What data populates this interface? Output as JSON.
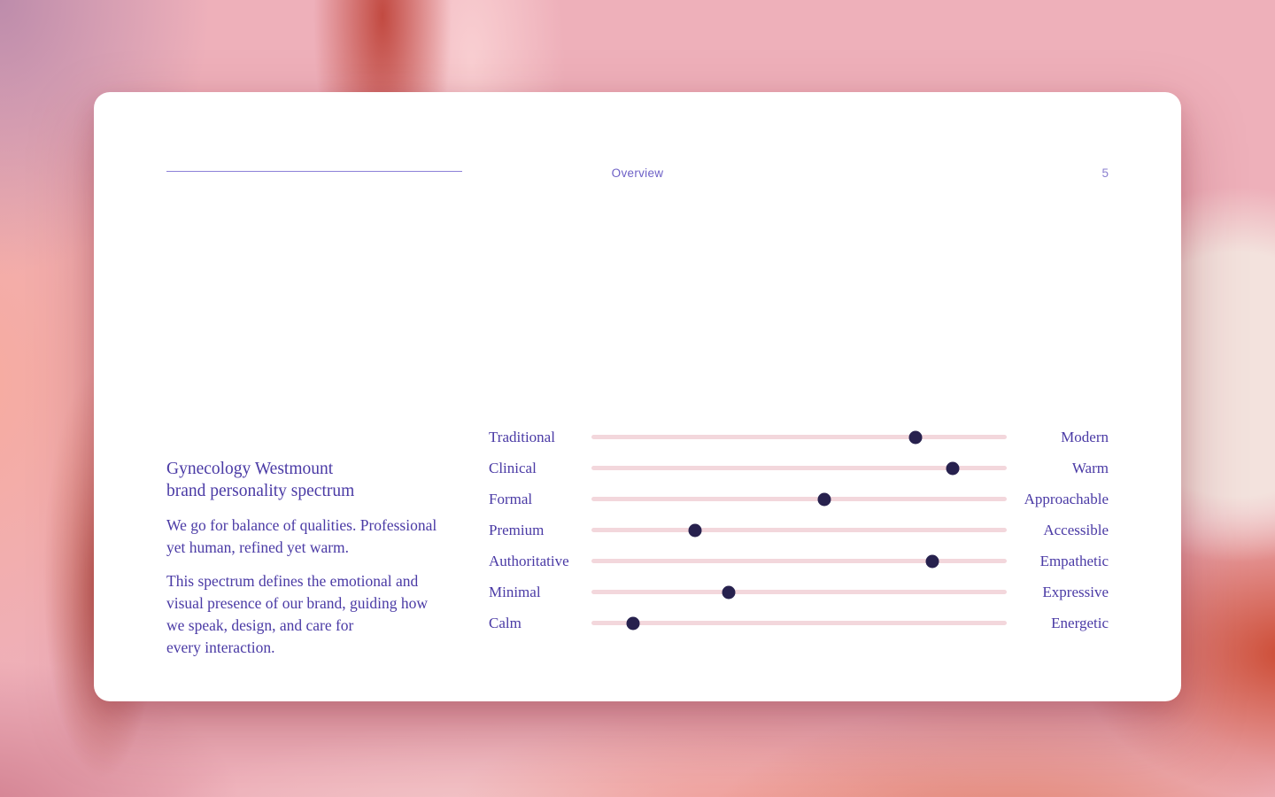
{
  "slide": {
    "header": {
      "section_label": "Overview",
      "page_number": "5"
    },
    "intro": {
      "title": "Gynecology Westmount\nbrand personality spectrum",
      "paragraph1": "We go for balance of qualities. Professional\nyet human, refined yet warm.",
      "paragraph2": "This spectrum defines the emotional and\nvisual presence of our brand, guiding how\nwe speak, design, and care for\nevery interaction."
    }
  },
  "chart_data": {
    "type": "scatter",
    "subtype": "dot-on-spectrum",
    "title": "Gynecology Westmount brand personality spectrum",
    "value_meaning": "percent position of dot from left pole (0) to right pole (100)",
    "rows": [
      {
        "left": "Traditional",
        "right": "Modern",
        "value": 78
      },
      {
        "left": "Clinical",
        "right": "Warm",
        "value": 87
      },
      {
        "left": "Formal",
        "right": "Approachable",
        "value": 56
      },
      {
        "left": "Premium",
        "right": "Accessible",
        "value": 25
      },
      {
        "left": "Authoritative",
        "right": "Empathetic",
        "value": 82
      },
      {
        "left": "Minimal",
        "right": "Expressive",
        "value": 33
      },
      {
        "left": "Calm",
        "right": "Energetic",
        "value": 10
      }
    ],
    "colors": {
      "dot": "#27214e",
      "track": "#f3d7dc",
      "label": "#4a3aa5",
      "header_accent": "#6d60c6",
      "card_background": "#ffffff",
      "backdrop_base": "#eeb0ba"
    }
  }
}
